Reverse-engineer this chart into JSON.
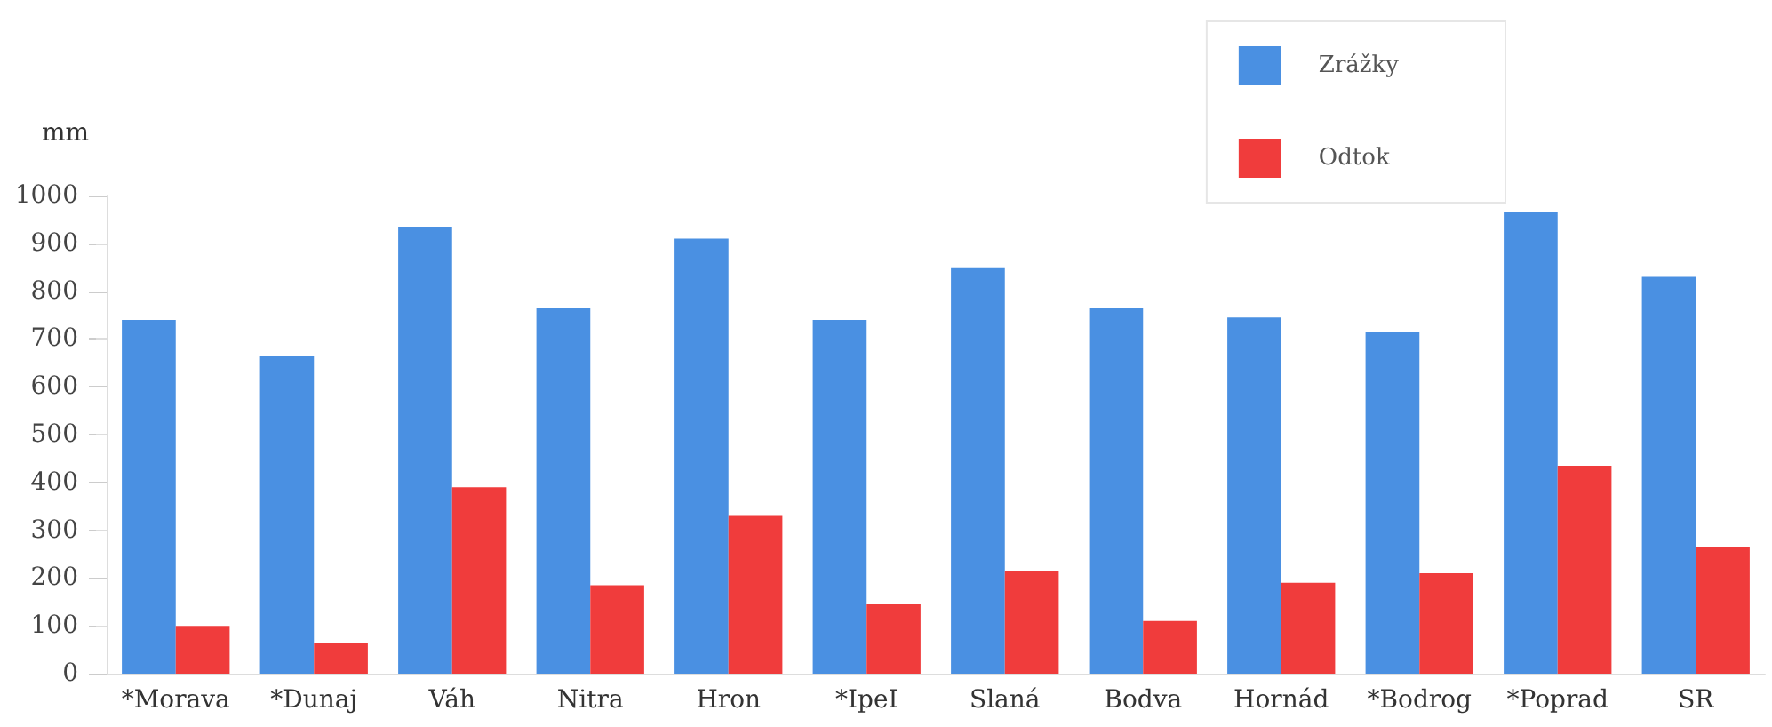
{
  "chart_data": {
    "type": "bar",
    "ylabel": "mm",
    "categories": [
      "*Morava",
      "*Dunaj",
      "Váh",
      "Nitra",
      "Hron",
      "*IpeI",
      "Slaná",
      "Bodva",
      "Hornád",
      "*Bodrog",
      "*Poprad",
      "SR"
    ],
    "series": [
      {
        "name": "Zrážky",
        "color": "#4a90e2",
        "values": [
          740,
          665,
          935,
          765,
          910,
          740,
          850,
          765,
          745,
          715,
          965,
          830
        ]
      },
      {
        "name": "Odtok",
        "color": "#f03c3c",
        "values": [
          100,
          65,
          390,
          185,
          330,
          145,
          215,
          110,
          190,
          210,
          435,
          265
        ]
      }
    ],
    "ylim": [
      0,
      1000
    ],
    "yticks": [
      0,
      100,
      200,
      300,
      400,
      500,
      600,
      700,
      800,
      900,
      1000
    ],
    "grid": false,
    "legend": "top right"
  }
}
